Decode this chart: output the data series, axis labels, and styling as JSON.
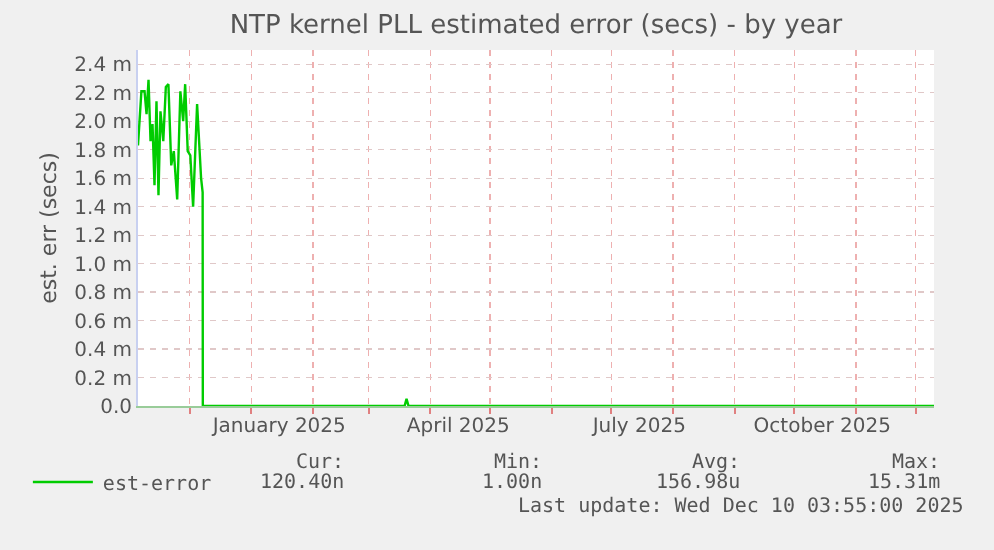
{
  "chart_data": {
    "type": "line",
    "title": "NTP kernel PLL estimated error (secs) - by year",
    "ylabel": "est. err (secs)",
    "x": [
      "2024-11-05T00:00",
      "2024-11-06T17:00",
      "2024-11-08T07:00",
      "2024-11-09T07:00",
      "2024-11-10T07:00",
      "2024-11-11T07:00",
      "2024-11-12T07:00",
      "2024-11-13T07:00",
      "2024-11-14T07:00",
      "2024-11-15T07:00",
      "2024-11-16T07:00",
      "2024-11-17T17:00",
      "2024-11-19T00:00",
      "2024-11-20T07:00",
      "2024-11-21T17:00",
      "2024-11-23T00:00",
      "2024-11-24T17:00",
      "2024-11-26T07:00",
      "2024-11-27T17:00",
      "2024-11-28T17:00",
      "2024-11-30T00:00",
      "2024-12-01T07:00",
      "2024-12-02T17:00",
      "2024-12-04T17:00",
      "2024-12-06T17:00",
      "2024-12-07T12:00",
      "2024-12-07T14:00",
      "2025-03-19T00:00",
      "2025-03-20T00:00",
      "2025-03-21T00:00",
      "2025-12-10T03:55"
    ],
    "series": [
      {
        "name": "est-error",
        "color": "#00cc00",
        "values": [
          1.83,
          2.21,
          2.21,
          2.05,
          2.29,
          1.86,
          1.98,
          1.55,
          2.14,
          1.48,
          2.07,
          1.86,
          2.24,
          2.26,
          1.69,
          1.79,
          1.45,
          2.21,
          2.0,
          2.26,
          1.79,
          1.76,
          1.4,
          2.12,
          1.6,
          1.5,
          0,
          0,
          0.05,
          0,
          0
        ]
      }
    ],
    "xlim": [
      "2024-11-05T00:00",
      "2025-12-10T03:55"
    ],
    "xticks": [
      {
        "value": "2024-12-01",
        "label": null
      },
      {
        "value": "2025-01-01",
        "label": null
      },
      {
        "value": "2025-01-15",
        "label": "January 2025"
      },
      {
        "value": "2025-02-01",
        "label": null
      },
      {
        "value": "2025-03-01",
        "label": null
      },
      {
        "value": "2025-04-01",
        "label": null
      },
      {
        "value": "2025-04-15",
        "label": "April 2025"
      },
      {
        "value": "2025-05-01",
        "label": null
      },
      {
        "value": "2025-06-01",
        "label": null
      },
      {
        "value": "2025-07-01",
        "label": null
      },
      {
        "value": "2025-07-15",
        "label": "July 2025"
      },
      {
        "value": "2025-08-01",
        "label": null
      },
      {
        "value": "2025-09-01",
        "label": null
      },
      {
        "value": "2025-10-01",
        "label": null
      },
      {
        "value": "2025-10-15",
        "label": "October 2025"
      },
      {
        "value": "2025-11-01",
        "label": null
      },
      {
        "value": "2025-12-01",
        "label": null
      }
    ],
    "ylim": [
      0,
      2.5
    ],
    "yticks": [
      {
        "value": 0,
        "label": "0.0"
      },
      {
        "value": 0.2,
        "label": "0.2 m"
      },
      {
        "value": 0.4,
        "label": "0.4 m"
      },
      {
        "value": 0.6,
        "label": "0.6 m"
      },
      {
        "value": 0.8,
        "label": "0.8 m"
      },
      {
        "value": 1.0,
        "label": "1.0 m"
      },
      {
        "value": 1.2,
        "label": "1.2 m"
      },
      {
        "value": 1.4,
        "label": "1.4 m"
      },
      {
        "value": 1.6,
        "label": "1.6 m"
      },
      {
        "value": 1.8,
        "label": "1.8 m"
      },
      {
        "value": 2.0,
        "label": "2.0 m"
      },
      {
        "value": 2.2,
        "label": "2.2 m"
      },
      {
        "value": 2.4,
        "label": "2.4 m"
      }
    ],
    "grid": true,
    "legend": "bottom left",
    "marker": "none",
    "line_style": "solid",
    "annotations": [
      "Cur:",
      "Min:",
      "Avg:",
      "Max:",
      "120.40n",
      "1.00n",
      "156.98u",
      "15.31m",
      "Last update: Wed Dec 10 03:55:00 2025"
    ]
  }
}
